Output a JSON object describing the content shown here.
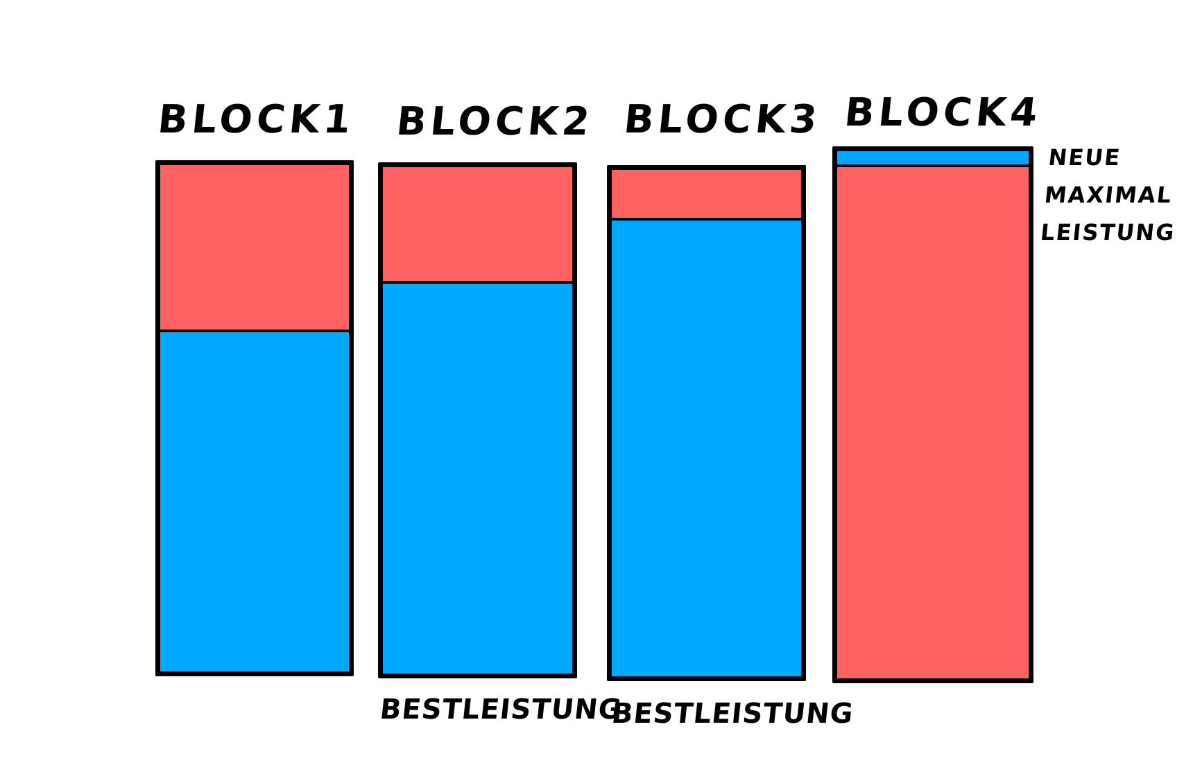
{
  "colors": {
    "red": "#FF6262",
    "blue": "#00A8FF",
    "outline": "#000000",
    "background": "#FFFFFF"
  },
  "blocks": [
    {
      "title": "BLOCK1",
      "red_fraction": 0.33,
      "blue_fraction": 0.67,
      "note": ""
    },
    {
      "title": "BLOCK2",
      "red_fraction": 0.23,
      "blue_fraction": 0.77,
      "note": "BESTLEISTUNG"
    },
    {
      "title": "BLOCK3",
      "red_fraction": 0.1,
      "blue_fraction": 0.9,
      "note": "BESTLEISTUNG"
    },
    {
      "title": "BLOCK4",
      "red_fraction": 0.97,
      "blue_fraction": 0.03,
      "note": ""
    }
  ],
  "side_note": {
    "lines": [
      "NEUE",
      "MAXIMAL",
      "LEISTUNG"
    ]
  }
}
